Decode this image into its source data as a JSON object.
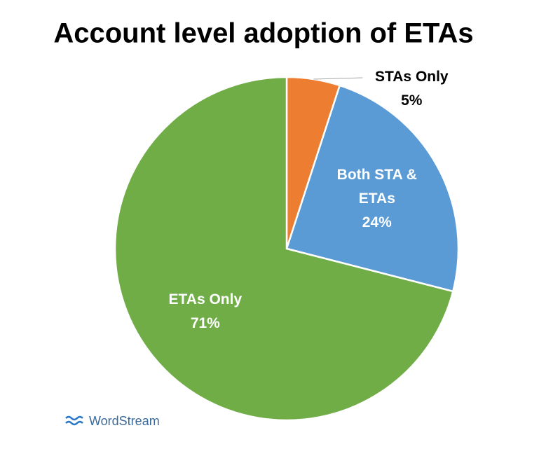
{
  "chart_data": {
    "type": "pie",
    "title": "Account level adoption of ETAs",
    "categories": [
      "STAs Only",
      "Both STA & ETAs",
      "ETAs Only"
    ],
    "values": [
      5,
      24,
      71
    ],
    "value_labels": [
      "5%",
      "24%",
      "71%"
    ],
    "colors": [
      "#ed7d31",
      "#5b9bd5",
      "#70ad47"
    ],
    "watermark": "WordStream"
  }
}
